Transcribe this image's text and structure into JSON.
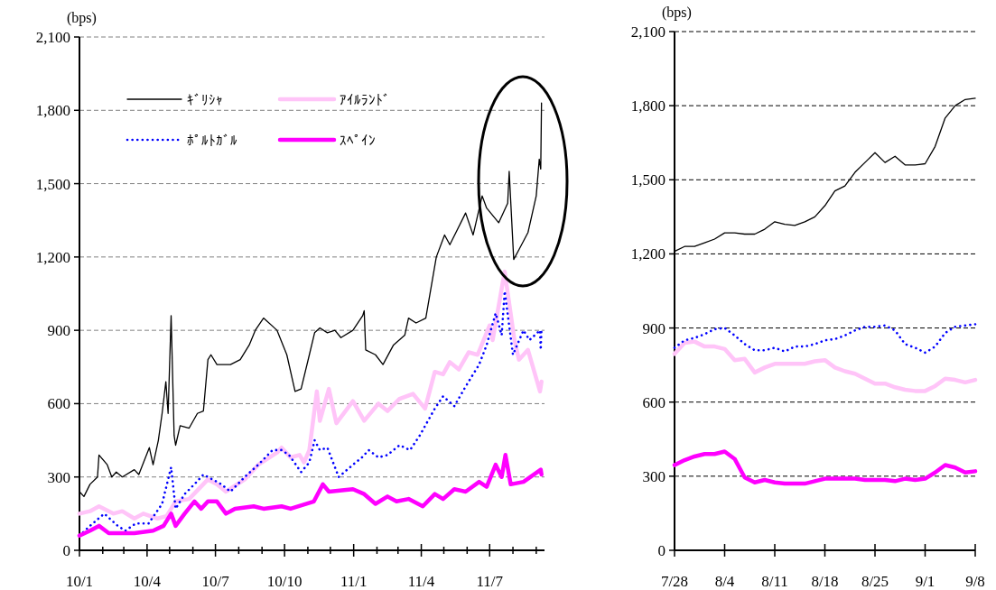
{
  "chart_data": [
    {
      "type": "line",
      "ylabel": "(bps)",
      "xlim": [
        "2010-01-01",
        "2011-09-12"
      ],
      "ylim": [
        0,
        2100
      ],
      "yticks": [
        0,
        300,
        600,
        900,
        {
          "value": 1200,
          "label": "1,200"
        },
        {
          "value": 1500,
          "label": "1,500"
        },
        {
          "value": 1800,
          "label": "1,800"
        },
        {
          "value": 2100,
          "label": "2,100"
        }
      ],
      "xticks": [
        {
          "value": "2010-01-01",
          "label": "10/1"
        },
        {
          "value": "2010-02-01",
          "label": null
        },
        {
          "value": "2010-03-01",
          "label": null
        },
        {
          "value": "2010-04-01",
          "label": "10/4"
        },
        {
          "value": "2010-05-01",
          "label": null
        },
        {
          "value": "2010-06-01",
          "label": null
        },
        {
          "value": "2010-07-01",
          "label": "10/7"
        },
        {
          "value": "2010-08-01",
          "label": null
        },
        {
          "value": "2010-09-01",
          "label": null
        },
        {
          "value": "2010-10-01",
          "label": "10/10"
        },
        {
          "value": "2010-11-01",
          "label": null
        },
        {
          "value": "2010-12-01",
          "label": null
        },
        {
          "value": "2011-01-01",
          "label": "11/1"
        },
        {
          "value": "2011-02-01",
          "label": null
        },
        {
          "value": "2011-03-01",
          "label": null
        },
        {
          "value": "2011-04-01",
          "label": "11/4"
        },
        {
          "value": "2011-05-01",
          "label": null
        },
        {
          "value": "2011-06-01",
          "label": null
        },
        {
          "value": "2011-07-01",
          "label": "11/7"
        },
        {
          "value": "2011-08-01",
          "label": null
        },
        {
          "value": "2011-09-01",
          "label": null
        }
      ],
      "grid": "y",
      "legend": "top",
      "series": [
        {
          "name": "ｷﾞﾘｼｬ",
          "color": "#000000",
          "line_style": "solid",
          "x": [
            "2010-01-01",
            "2010-01-07",
            "2010-01-15",
            "2010-01-25",
            "2010-01-27",
            "2010-02-07",
            "2010-02-13",
            "2010-02-19",
            "2010-02-27",
            "2010-03-15",
            "2010-03-21",
            "2010-04-04",
            "2010-04-09",
            "2010-04-16",
            "2010-04-21",
            "2010-04-26",
            "2010-04-29",
            "2010-05-03",
            "2010-05-07",
            "2010-05-09",
            "2010-05-15",
            "2010-05-27",
            "2010-06-07",
            "2010-06-15",
            "2010-06-21",
            "2010-06-25",
            "2010-07-03",
            "2010-07-21",
            "2010-08-03",
            "2010-08-15",
            "2010-08-23",
            "2010-09-03",
            "2010-09-21",
            "2010-10-04",
            "2010-10-15",
            "2010-10-23",
            "2010-11-03",
            "2010-11-10",
            "2010-11-17",
            "2010-11-27",
            "2010-12-07",
            "2010-12-15",
            "2010-12-31",
            "2011-01-13",
            "2011-01-15",
            "2011-01-17",
            "2011-01-30",
            "2011-02-09",
            "2011-02-23",
            "2011-03-10",
            "2011-03-15",
            "2011-03-25",
            "2011-04-07",
            "2011-04-21",
            "2011-05-02",
            "2011-05-09",
            "2011-05-30",
            "2011-06-09",
            "2011-06-21",
            "2011-06-27",
            "2011-07-13",
            "2011-07-25",
            "2011-07-27",
            "2011-08-02",
            "2011-08-09",
            "2011-08-21",
            "2011-09-01",
            "2011-09-05",
            "2011-09-07",
            "2011-09-08"
          ],
          "values": [
            240,
            220,
            270,
            300,
            390,
            350,
            300,
            320,
            300,
            330,
            310,
            420,
            350,
            450,
            560,
            690,
            560,
            960,
            470,
            430,
            510,
            500,
            560,
            570,
            780,
            800,
            760,
            760,
            780,
            840,
            900,
            950,
            900,
            800,
            650,
            660,
            800,
            890,
            910,
            890,
            900,
            870,
            900,
            960,
            980,
            820,
            800,
            760,
            840,
            880,
            950,
            930,
            950,
            1200,
            1290,
            1250,
            1380,
            1290,
            1450,
            1400,
            1340,
            1420,
            1550,
            1190,
            1230,
            1300,
            1450,
            1600,
            1560,
            1830
          ]
        },
        {
          "name": "ｱｲﾙﾗﾝﾄﾞ",
          "color": "#ffc4f8",
          "line_style": "solid",
          "x": [
            "2010-01-01",
            "2010-01-15",
            "2010-01-27",
            "2010-02-15",
            "2010-02-27",
            "2010-03-15",
            "2010-03-27",
            "2010-04-15",
            "2010-04-27",
            "2010-05-09",
            "2010-05-27",
            "2010-06-21",
            "2010-07-03",
            "2010-07-15",
            "2010-08-09",
            "2010-08-27",
            "2010-09-21",
            "2010-09-27",
            "2010-10-09",
            "2010-10-21",
            "2010-10-27",
            "2010-11-03",
            "2010-11-13",
            "2010-11-17",
            "2010-11-29",
            "2010-12-09",
            "2010-12-31",
            "2011-01-15",
            "2011-02-03",
            "2011-02-15",
            "2011-03-03",
            "2011-03-21",
            "2011-04-06",
            "2011-04-19",
            "2011-04-30",
            "2011-05-09",
            "2011-05-21",
            "2011-06-03",
            "2011-06-15",
            "2011-07-01",
            "2011-07-05",
            "2011-07-21",
            "2011-08-03",
            "2011-08-09",
            "2011-08-21",
            "2011-09-06",
            "2011-09-08"
          ],
          "values": [
            150,
            160,
            180,
            150,
            160,
            130,
            150,
            130,
            140,
            200,
            210,
            290,
            270,
            240,
            290,
            350,
            400,
            420,
            380,
            390,
            360,
            410,
            650,
            530,
            660,
            520,
            610,
            530,
            600,
            570,
            620,
            640,
            580,
            730,
            720,
            770,
            740,
            810,
            800,
            920,
            860,
            1140,
            860,
            780,
            820,
            650,
            690
          ]
        },
        {
          "name": "ﾎﾟﾙﾄｶﾞﾙ",
          "color": "#0000ff",
          "line_style": "dotted",
          "x": [
            "2010-01-01",
            "2010-01-15",
            "2010-02-03",
            "2010-02-21",
            "2010-03-03",
            "2010-03-17",
            "2010-04-03",
            "2010-04-21",
            "2010-05-03",
            "2010-05-09",
            "2010-05-21",
            "2010-06-03",
            "2010-06-15",
            "2010-07-09",
            "2010-07-21",
            "2010-08-09",
            "2010-08-27",
            "2010-09-15",
            "2010-09-27",
            "2010-10-07",
            "2010-10-23",
            "2010-11-03",
            "2010-11-10",
            "2010-11-17",
            "2010-11-27",
            "2010-12-12",
            "2010-12-31",
            "2011-01-12",
            "2011-01-21",
            "2011-02-03",
            "2011-02-15",
            "2011-03-03",
            "2011-03-17",
            "2011-03-30",
            "2011-04-19",
            "2011-04-30",
            "2011-05-15",
            "2011-05-30",
            "2011-06-17",
            "2011-06-27",
            "2011-07-09",
            "2011-07-17",
            "2011-07-21",
            "2011-08-01",
            "2011-08-15",
            "2011-08-23",
            "2011-09-06",
            "2011-09-07",
            "2011-09-08"
          ],
          "values": [
            60,
            100,
            150,
            100,
            80,
            110,
            110,
            190,
            340,
            170,
            230,
            270,
            310,
            270,
            240,
            300,
            350,
            410,
            410,
            390,
            320,
            360,
            450,
            410,
            420,
            300,
            350,
            380,
            410,
            380,
            390,
            430,
            410,
            470,
            580,
            630,
            590,
            670,
            760,
            840,
            970,
            880,
            1060,
            800,
            900,
            860,
            900,
            820,
            910
          ]
        },
        {
          "name": "ｽﾍﾟｲﾝ",
          "color": "#ff00ff",
          "line_style": "solid",
          "x": [
            "2010-01-01",
            "2010-01-15",
            "2010-01-27",
            "2010-02-09",
            "2010-03-15",
            "2010-04-09",
            "2010-04-23",
            "2010-05-03",
            "2010-05-09",
            "2010-05-21",
            "2010-06-03",
            "2010-06-12",
            "2010-06-21",
            "2010-07-03",
            "2010-07-15",
            "2010-07-27",
            "2010-08-21",
            "2010-09-03",
            "2010-09-27",
            "2010-10-09",
            "2010-11-09",
            "2010-11-21",
            "2010-11-29",
            "2010-12-31",
            "2011-01-15",
            "2011-01-30",
            "2011-02-15",
            "2011-02-27",
            "2011-03-15",
            "2011-04-03",
            "2011-04-19",
            "2011-04-30",
            "2011-05-15",
            "2011-05-30",
            "2011-06-17",
            "2011-06-27",
            "2011-07-09",
            "2011-07-17",
            "2011-07-22",
            "2011-07-29",
            "2011-08-15",
            "2011-09-07",
            "2011-09-08"
          ],
          "values": [
            60,
            80,
            100,
            70,
            70,
            80,
            100,
            150,
            100,
            150,
            200,
            170,
            200,
            200,
            150,
            170,
            180,
            170,
            180,
            170,
            200,
            270,
            240,
            250,
            230,
            190,
            220,
            200,
            210,
            180,
            230,
            210,
            250,
            240,
            280,
            260,
            350,
            300,
            390,
            270,
            280,
            330,
            310
          ]
        }
      ]
    },
    {
      "type": "line",
      "ylabel": "(bps)",
      "ylim": [
        0,
        2100
      ],
      "yticks": [
        0,
        300,
        600,
        900,
        {
          "value": 1200,
          "label": "1,200"
        },
        {
          "value": 1500,
          "label": "1,500"
        },
        {
          "value": 1800,
          "label": "1,800"
        },
        {
          "value": 2100,
          "label": "2,100"
        }
      ],
      "categories": [
        "7/28",
        null,
        null,
        null,
        null,
        "8/4",
        null,
        null,
        null,
        null,
        "8/11",
        null,
        null,
        null,
        null,
        "8/18",
        null,
        null,
        null,
        null,
        "8/25",
        null,
        null,
        null,
        null,
        "9/1",
        null,
        null,
        null,
        null,
        "9/8"
      ],
      "grid": "y",
      "series": [
        {
          "color": "#000000",
          "line_style": "solid",
          "values": [
            1210,
            1230,
            1230,
            1245,
            1260,
            1285,
            1285,
            1280,
            1280,
            1300,
            1330,
            1320,
            1315,
            1330,
            1350,
            1395,
            1455,
            1475,
            1530,
            1570,
            1610,
            1570,
            1595,
            1560,
            1560,
            1565,
            1635,
            1750,
            1800,
            1825,
            1830
          ]
        },
        {
          "color": "#ffc4f8",
          "line_style": "solid",
          "values": [
            795,
            840,
            845,
            825,
            825,
            815,
            770,
            775,
            720,
            740,
            755,
            755,
            755,
            755,
            765,
            770,
            740,
            725,
            715,
            695,
            675,
            675,
            660,
            650,
            645,
            645,
            665,
            695,
            690,
            680,
            690
          ]
        },
        {
          "color": "#0000ff",
          "line_style": "dotted",
          "values": [
            820,
            850,
            860,
            875,
            895,
            900,
            870,
            835,
            810,
            810,
            820,
            805,
            825,
            825,
            835,
            850,
            855,
            870,
            890,
            905,
            905,
            910,
            890,
            835,
            820,
            800,
            825,
            880,
            905,
            910,
            915
          ]
        },
        {
          "color": "#ff00ff",
          "line_style": "solid",
          "values": [
            345,
            365,
            380,
            390,
            390,
            400,
            370,
            295,
            275,
            285,
            275,
            270,
            270,
            270,
            280,
            290,
            290,
            290,
            290,
            285,
            285,
            285,
            280,
            290,
            285,
            290,
            315,
            345,
            335,
            315,
            320
          ]
        }
      ]
    }
  ]
}
